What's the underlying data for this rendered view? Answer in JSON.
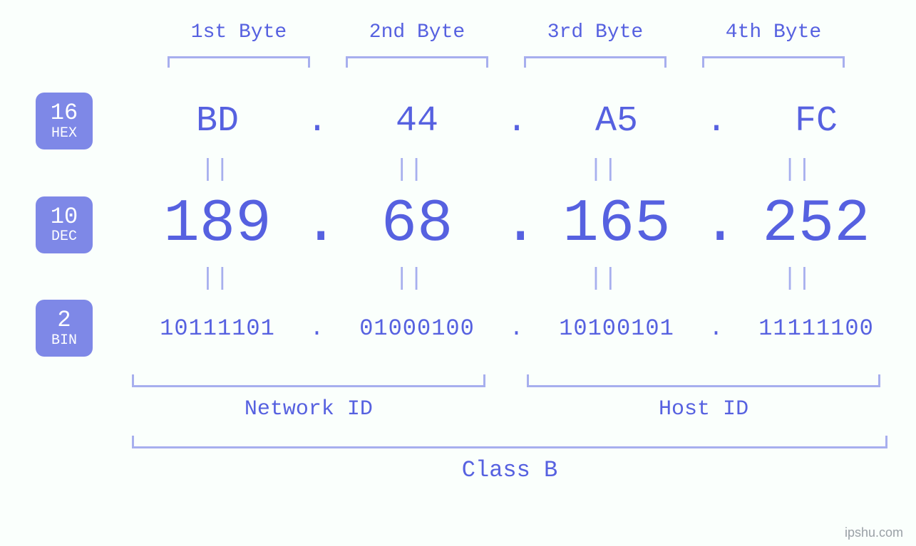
{
  "diagram": {
    "type": "infographic",
    "background_color": "#fafffc",
    "accent_color": "#5661e0",
    "bracket_color": "#a7afee",
    "badge_bg": "#7e88e7",
    "badge_fg": "#ffffff",
    "font_family": "monospace",
    "byte_headers": [
      "1st Byte",
      "2nd Byte",
      "3rd Byte",
      "4th Byte"
    ],
    "rows": {
      "hex": {
        "badge_num": "16",
        "badge_txt": "HEX",
        "fontsize": 50,
        "values": [
          "BD",
          "44",
          "A5",
          "FC"
        ]
      },
      "dec": {
        "badge_num": "10",
        "badge_txt": "DEC",
        "fontsize": 84,
        "values": [
          "189",
          "68",
          "165",
          "252"
        ]
      },
      "bin": {
        "badge_num": "2",
        "badge_txt": "BIN",
        "fontsize": 32,
        "values": [
          "10111101",
          "01000100",
          "10100101",
          "11111100"
        ]
      }
    },
    "separator": ".",
    "equals_symbol": "||",
    "groups": {
      "network_id_label": "Network ID",
      "host_id_label": "Host ID",
      "class_label": "Class B"
    },
    "watermark": "ipshu.com"
  }
}
